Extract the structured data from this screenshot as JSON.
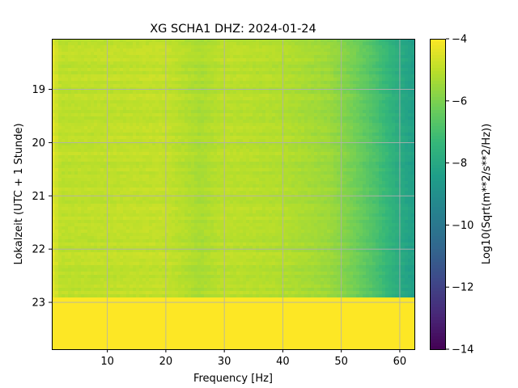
{
  "chart_data": {
    "type": "heatmap",
    "title": "XG SCHA1  DHZ: 2024-01-24",
    "xlabel": "Frequency [Hz]",
    "ylabel": "Lokalzeit (UTC + 1 Stunde)",
    "xlim": [
      0.5,
      62.5
    ],
    "ylim": [
      23.88,
      18.05
    ],
    "x_ticks": [
      10,
      20,
      30,
      40,
      50,
      60
    ],
    "y_ticks": [
      19,
      20,
      21,
      22,
      23
    ],
    "grid": true,
    "colorbar": {
      "label": "Log10(Sqrt(m**2/s**2/Hz))",
      "range": [
        -14,
        -4
      ],
      "ticks": [
        -14,
        -12,
        -10,
        -8,
        -6,
        -4
      ],
      "tick_labels": [
        "−14",
        "−12",
        "−10",
        "−8",
        "−6",
        "−4"
      ],
      "colormap": "viridis"
    },
    "data_end_time": 22.85,
    "profile_frequency": [
      0.5,
      2,
      10,
      20,
      26,
      30,
      40,
      48,
      52,
      56,
      60,
      62.5
    ],
    "profile_value": [
      -4.4,
      -5.0,
      -4.95,
      -4.9,
      -5.3,
      -5.0,
      -5.15,
      -5.5,
      -6.1,
      -6.9,
      -7.9,
      -8.4
    ],
    "fill_value_after_end": -4.0
  }
}
